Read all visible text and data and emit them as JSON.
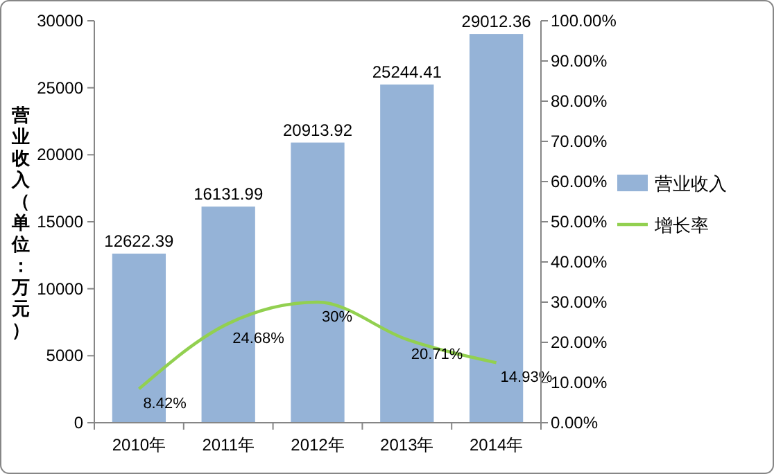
{
  "chart_data": {
    "type": "bar",
    "ylabel": "营业收入（单位：万元）",
    "categories": [
      "2010年",
      "2011年",
      "2012年",
      "2013年",
      "2014年"
    ],
    "series": [
      {
        "name": "营业收入",
        "color": "#95b3d7",
        "values": [
          12622.39,
          16131.99,
          20913.92,
          25244.41,
          29012.36
        ],
        "value_labels": [
          "12622.39",
          "16131.99",
          "20913.92",
          "25244.41",
          "29012.36"
        ]
      },
      {
        "name": "增长率",
        "type": "line",
        "axis": "y2",
        "color": "#92d050",
        "values": [
          8.42,
          24.68,
          30,
          20.71,
          14.93
        ],
        "value_labels": [
          "8.42%",
          "24.68%",
          "30%",
          "20.71%",
          "14.93%"
        ]
      }
    ],
    "ylim": [
      0,
      30000
    ],
    "yticks": [
      0,
      5000,
      10000,
      15000,
      20000,
      25000,
      30000
    ],
    "y2lim": [
      0,
      100
    ],
    "y2ticks": [
      {
        "value": 0,
        "label": "0.00%"
      },
      {
        "value": 10,
        "label": "10.00%"
      },
      {
        "value": 20,
        "label": "20.00%"
      },
      {
        "value": 30,
        "label": "30.00%"
      },
      {
        "value": 40,
        "label": "40.00%"
      },
      {
        "value": 50,
        "label": "50.00%"
      },
      {
        "value": 60,
        "label": "60.00%"
      },
      {
        "value": 70,
        "label": "70.00%"
      },
      {
        "value": 80,
        "label": "80.00%"
      },
      {
        "value": 90,
        "label": "90.00%"
      },
      {
        "value": 100,
        "label": "100.00%"
      }
    ],
    "legend": "right",
    "marker": "none",
    "line_style": "solid"
  }
}
